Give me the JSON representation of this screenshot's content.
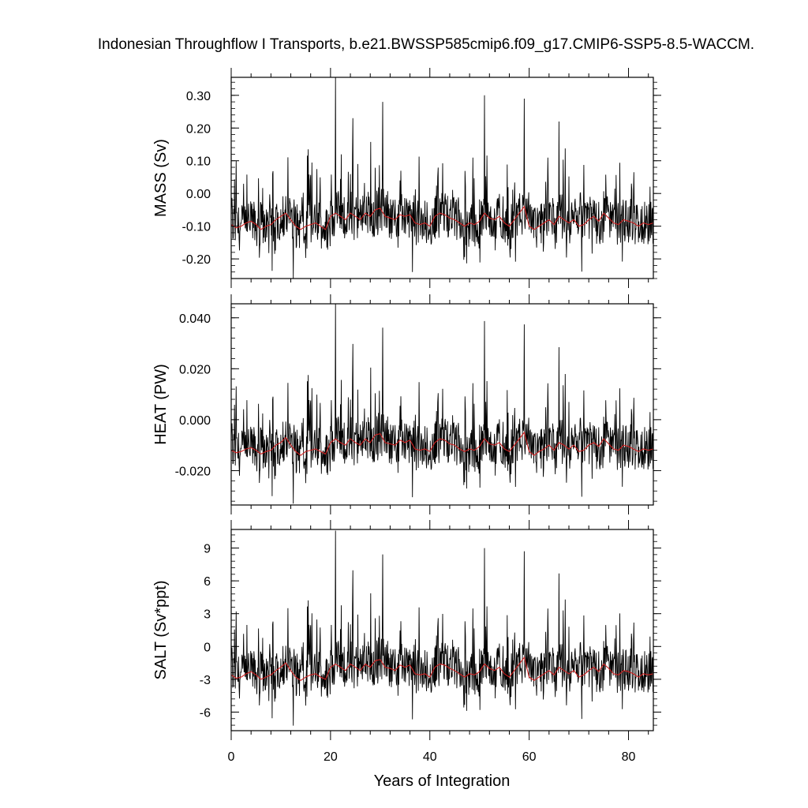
{
  "chart_data": {
    "type": "line",
    "title": "Indonesian Throughflow I Transports, b.e21.BWSSP585cmip6.f09_g17.CMIP6-SSP5-8.5-WACCM.",
    "xlabel": "Years of Integration",
    "xlim": [
      0,
      85
    ],
    "x_ticks": [
      "0",
      "20",
      "40",
      "60",
      "80"
    ],
    "grid": false,
    "legend": "none",
    "colors": {
      "raw": "#000000",
      "annual_mean": "#d02020"
    },
    "panels": [
      {
        "name": "mass",
        "ylabel": "MASS (Sv)",
        "ylim": [
          -0.26,
          0.355
        ],
        "y_ticks": [
          "0.30",
          "0.20",
          "0.10",
          "0.00",
          "-0.10",
          "-0.20"
        ],
        "y_tick_values": [
          0.3,
          0.2,
          0.1,
          0.0,
          -0.1,
          -0.2
        ],
        "annual_mean": {
          "x": [
            0,
            1,
            2,
            3,
            4,
            5,
            6,
            7,
            8,
            9,
            10,
            11,
            12,
            13,
            14,
            15,
            16,
            17,
            18,
            19,
            20,
            21,
            22,
            23,
            24,
            25,
            26,
            27,
            28,
            29,
            30,
            31,
            32,
            33,
            34,
            35,
            36,
            37,
            38,
            39,
            40,
            41,
            42,
            43,
            44,
            45,
            46,
            47,
            48,
            49,
            50,
            51,
            52,
            53,
            54,
            55,
            56,
            57,
            58,
            59,
            60,
            61,
            62,
            63,
            64,
            65,
            66,
            67,
            68,
            69,
            70,
            71,
            72,
            73,
            74,
            75,
            76,
            77,
            78,
            79,
            80,
            81,
            82,
            83,
            84,
            85
          ],
          "y": [
            -0.095,
            -0.105,
            -0.1,
            -0.09,
            -0.085,
            -0.095,
            -0.11,
            -0.1,
            -0.095,
            -0.08,
            -0.07,
            -0.06,
            -0.08,
            -0.1,
            -0.11,
            -0.1,
            -0.095,
            -0.09,
            -0.1,
            -0.11,
            -0.07,
            -0.06,
            -0.07,
            -0.08,
            -0.06,
            -0.07,
            -0.08,
            -0.06,
            -0.07,
            -0.05,
            -0.045,
            -0.07,
            -0.075,
            -0.08,
            -0.065,
            -0.07,
            -0.065,
            -0.09,
            -0.095,
            -0.09,
            -0.1,
            -0.07,
            -0.06,
            -0.065,
            -0.075,
            -0.08,
            -0.09,
            -0.1,
            -0.09,
            -0.095,
            -0.085,
            -0.06,
            -0.075,
            -0.08,
            -0.07,
            -0.09,
            -0.1,
            -0.08,
            -0.06,
            -0.04,
            -0.1,
            -0.11,
            -0.1,
            -0.09,
            -0.08,
            -0.095,
            -0.07,
            -0.08,
            -0.09,
            -0.08,
            -0.1,
            -0.095,
            -0.08,
            -0.07,
            -0.085,
            -0.06,
            -0.075,
            -0.09,
            -0.095,
            -0.08,
            -0.085,
            -0.09,
            -0.1,
            -0.09,
            -0.095,
            -0.09
          ]
        }
      },
      {
        "name": "heat",
        "ylabel": "HEAT (PW)",
        "ylim": [
          -0.0335,
          0.0455
        ],
        "y_ticks": [
          "0.040",
          "0.020",
          "0.000",
          "-0.020"
        ],
        "y_tick_values": [
          0.04,
          0.02,
          0.0,
          -0.02
        ],
        "annual_mean": {
          "x": [
            0,
            1,
            2,
            3,
            4,
            5,
            6,
            7,
            8,
            9,
            10,
            11,
            12,
            13,
            14,
            15,
            16,
            17,
            18,
            19,
            20,
            21,
            22,
            23,
            24,
            25,
            26,
            27,
            28,
            29,
            30,
            31,
            32,
            33,
            34,
            35,
            36,
            37,
            38,
            39,
            40,
            41,
            42,
            43,
            44,
            45,
            46,
            47,
            48,
            49,
            50,
            51,
            52,
            53,
            54,
            55,
            56,
            57,
            58,
            59,
            60,
            61,
            62,
            63,
            64,
            65,
            66,
            67,
            68,
            69,
            70,
            71,
            72,
            73,
            74,
            75,
            76,
            77,
            78,
            79,
            80,
            81,
            82,
            83,
            84,
            85
          ],
          "y": [
            -0.012,
            -0.013,
            -0.0125,
            -0.0115,
            -0.011,
            -0.012,
            -0.0135,
            -0.0125,
            -0.012,
            -0.01,
            -0.009,
            -0.007,
            -0.01,
            -0.0125,
            -0.014,
            -0.0125,
            -0.012,
            -0.0115,
            -0.0125,
            -0.0135,
            -0.009,
            -0.0075,
            -0.009,
            -0.01,
            -0.0075,
            -0.009,
            -0.01,
            -0.0075,
            -0.009,
            -0.006,
            -0.0055,
            -0.009,
            -0.0095,
            -0.01,
            -0.008,
            -0.009,
            -0.008,
            -0.0115,
            -0.012,
            -0.0115,
            -0.0125,
            -0.009,
            -0.0075,
            -0.008,
            -0.0095,
            -0.01,
            -0.0115,
            -0.0125,
            -0.0115,
            -0.012,
            -0.0105,
            -0.0075,
            -0.0095,
            -0.01,
            -0.009,
            -0.0115,
            -0.0125,
            -0.01,
            -0.0075,
            -0.005,
            -0.0125,
            -0.014,
            -0.0125,
            -0.0115,
            -0.01,
            -0.012,
            -0.009,
            -0.01,
            -0.0115,
            -0.01,
            -0.0125,
            -0.012,
            -0.01,
            -0.009,
            -0.0105,
            -0.0075,
            -0.0095,
            -0.0115,
            -0.012,
            -0.01,
            -0.0105,
            -0.0115,
            -0.0125,
            -0.0115,
            -0.012,
            -0.0115
          ]
        }
      },
      {
        "name": "salt",
        "ylabel": "SALT (Sv*ppt)",
        "ylim": [
          -7.7,
          10.7
        ],
        "y_ticks": [
          "9",
          "6",
          "3",
          "0",
          "-3",
          "-6"
        ],
        "y_tick_values": [
          9,
          6,
          3,
          0,
          -3,
          -6
        ],
        "annual_mean": {
          "x": [
            0,
            1,
            2,
            3,
            4,
            5,
            6,
            7,
            8,
            9,
            10,
            11,
            12,
            13,
            14,
            15,
            16,
            17,
            18,
            19,
            20,
            21,
            22,
            23,
            24,
            25,
            26,
            27,
            28,
            29,
            30,
            31,
            32,
            33,
            34,
            35,
            36,
            37,
            38,
            39,
            40,
            41,
            42,
            43,
            44,
            45,
            46,
            47,
            48,
            49,
            50,
            51,
            52,
            53,
            54,
            55,
            56,
            57,
            58,
            59,
            60,
            61,
            62,
            63,
            64,
            65,
            66,
            67,
            68,
            69,
            70,
            71,
            72,
            73,
            74,
            75,
            76,
            77,
            78,
            79,
            80,
            81,
            82,
            83,
            84,
            85
          ],
          "y": [
            -2.6,
            -2.9,
            -2.8,
            -2.5,
            -2.3,
            -2.6,
            -3.0,
            -2.8,
            -2.6,
            -2.2,
            -1.9,
            -1.5,
            -2.2,
            -2.8,
            -3.1,
            -2.8,
            -2.6,
            -2.5,
            -2.8,
            -3.0,
            -1.9,
            -1.6,
            -1.9,
            -2.2,
            -1.6,
            -1.9,
            -2.2,
            -1.6,
            -1.9,
            -1.3,
            -1.2,
            -1.9,
            -2.0,
            -2.2,
            -1.7,
            -1.9,
            -1.7,
            -2.5,
            -2.6,
            -2.5,
            -2.8,
            -1.9,
            -1.6,
            -1.7,
            -2.0,
            -2.2,
            -2.5,
            -2.8,
            -2.5,
            -2.6,
            -2.3,
            -1.6,
            -2.0,
            -2.2,
            -1.9,
            -2.5,
            -2.8,
            -2.2,
            -1.6,
            -1.0,
            -2.8,
            -3.1,
            -2.8,
            -2.5,
            -2.2,
            -2.6,
            -1.9,
            -2.2,
            -2.5,
            -2.2,
            -2.8,
            -2.6,
            -2.2,
            -1.9,
            -2.3,
            -1.6,
            -2.0,
            -2.5,
            -2.6,
            -2.2,
            -2.3,
            -2.5,
            -2.8,
            -2.5,
            -2.6,
            -2.5
          ]
        }
      }
    ],
    "monthly_series": {
      "note_shown": false,
      "x_start": 0,
      "x_end": 85,
      "samples_per_year": 12,
      "mass_reference_spikes": [
        {
          "x": 21.0,
          "y": 0.355
        },
        {
          "x": 30.5,
          "y": 0.28
        },
        {
          "x": 51.0,
          "y": 0.3
        },
        {
          "x": 59.0,
          "y": 0.29
        },
        {
          "x": 24.5,
          "y": 0.23
        },
        {
          "x": 66.0,
          "y": 0.22
        },
        {
          "x": 1.0,
          "y": 0.1
        },
        {
          "x": 12.5,
          "y": -0.26
        },
        {
          "x": 36.5,
          "y": -0.24
        }
      ]
    }
  }
}
